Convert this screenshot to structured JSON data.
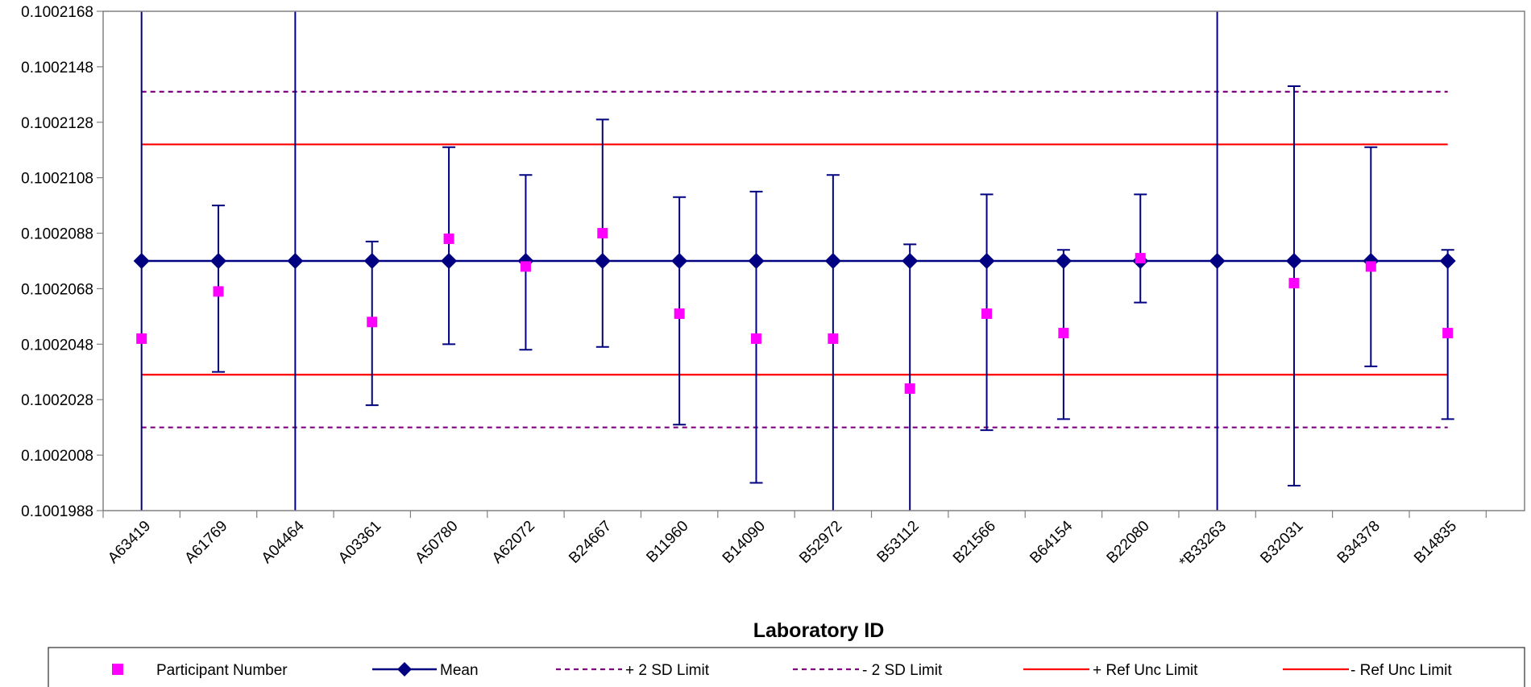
{
  "chart_data": {
    "type": "scatter",
    "title": "",
    "xlabel": "Laboratory ID",
    "ylabel": "",
    "ylim": [
      0.1001988,
      0.1002168
    ],
    "yticks": [
      "0.1002168",
      "0.1002148",
      "0.1002128",
      "0.1002108",
      "0.1002088",
      "0.1002068",
      "0.1002048",
      "0.1002028",
      "0.1002008",
      "0.1001988"
    ],
    "categories": [
      "A63419",
      "A61769",
      "A04464",
      "A03361",
      "A50780",
      "A62072",
      "B24667",
      "B11960",
      "B14090",
      "B52972",
      "B53112",
      "B21566",
      "B64154",
      "B22080",
      "*B33263",
      "B32031",
      "B34378",
      "B14835"
    ],
    "grid": false,
    "legend_position": "bottom",
    "series": [
      {
        "name": "Participant Number",
        "color": "#ff00ff",
        "marker": "square",
        "values": [
          0.100205,
          0.1002067,
          null,
          0.1002056,
          0.1002086,
          0.1002076,
          0.1002088,
          0.1002059,
          0.100205,
          0.100205,
          0.1002032,
          0.1002059,
          0.1002052,
          0.1002079,
          null,
          0.100207,
          0.1002076,
          0.1002052
        ]
      },
      {
        "name": "Mean",
        "color": "#000080",
        "marker": "diamond",
        "values": [
          0.1002078,
          0.1002078,
          0.1002078,
          0.1002078,
          0.1002078,
          0.1002078,
          0.1002078,
          0.1002078,
          0.1002078,
          0.1002078,
          0.1002078,
          0.1002078,
          0.1002078,
          0.1002078,
          0.1002078,
          0.1002078,
          0.1002078,
          0.1002078
        ],
        "error_low": [
          0.1001988,
          0.1002038,
          0.1001988,
          0.1002026,
          0.1002048,
          0.1002046,
          0.1002047,
          0.1002019,
          0.1001998,
          0.1001988,
          0.1001988,
          0.1002017,
          0.1002021,
          0.1002063,
          0.1001988,
          0.1001997,
          0.100204,
          0.1002021
        ],
        "error_high": [
          0.1002168,
          0.1002098,
          0.1002168,
          0.1002085,
          0.1002119,
          0.1002109,
          0.1002129,
          0.1002101,
          0.1002103,
          0.1002109,
          0.1002084,
          0.1002102,
          0.1002082,
          0.1002102,
          0.1002168,
          0.1002141,
          0.1002119,
          0.1002082
        ]
      },
      {
        "name": "+ 2 SD Limit",
        "color": "#800080",
        "style": "dashed",
        "value": 0.1002139
      },
      {
        "name": "- 2 SD Limit",
        "color": "#800080",
        "style": "dashed",
        "value": 0.1002018
      },
      {
        "name": "+ Ref Unc Limit",
        "color": "#ff0000",
        "style": "solid",
        "value": 0.100212
      },
      {
        "name": "- Ref Unc Limit",
        "color": "#ff0000",
        "style": "solid",
        "value": 0.1002037
      }
    ]
  }
}
